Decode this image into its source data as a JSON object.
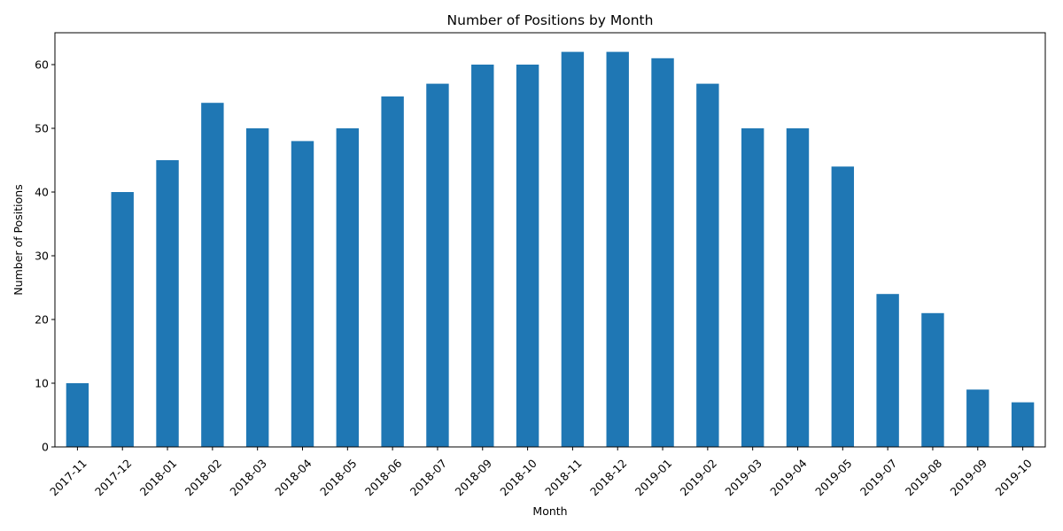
{
  "chart_data": {
    "type": "bar",
    "title": "Number of Positions by Month",
    "xlabel": "Month",
    "ylabel": "Number of Positions",
    "categories": [
      "2017-11",
      "2017-12",
      "2018-01",
      "2018-02",
      "2018-03",
      "2018-04",
      "2018-05",
      "2018-06",
      "2018-07",
      "2018-09",
      "2018-10",
      "2018-11",
      "2018-12",
      "2019-01",
      "2019-02",
      "2019-03",
      "2019-04",
      "2019-05",
      "2019-07",
      "2019-08",
      "2019-09",
      "2019-10"
    ],
    "values": [
      10,
      40,
      45,
      54,
      50,
      48,
      50,
      55,
      57,
      60,
      60,
      62,
      62,
      61,
      57,
      50,
      50,
      44,
      24,
      21,
      9,
      7
    ],
    "ylim": [
      0,
      65
    ],
    "yticks": [
      0,
      10,
      20,
      30,
      40,
      50,
      60
    ],
    "bar_color": "#1f77b4",
    "grid": false,
    "legend": "none"
  }
}
